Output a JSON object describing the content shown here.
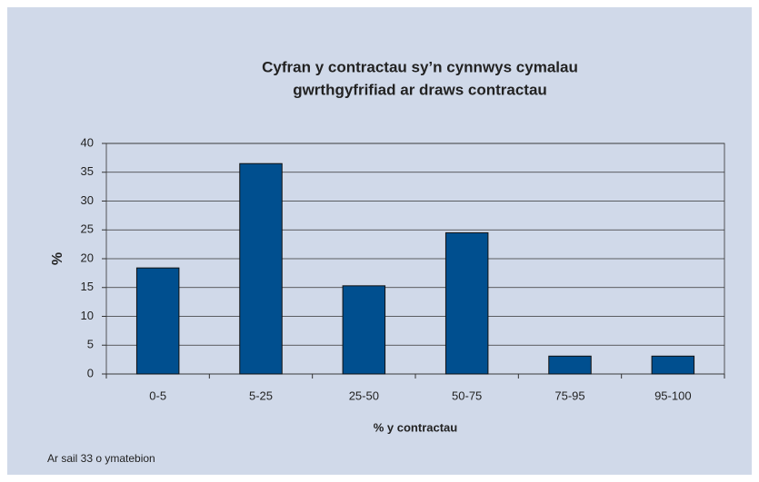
{
  "chart_data": {
    "type": "bar",
    "title": [
      "Cyfran y contractau sy’n cynnwys cymalau",
      "gwrthgyfrifiad ar draws contractau"
    ],
    "xlabel": "% y contractau",
    "ylabel": "%",
    "note": "Ar sail 33 o ymatebion",
    "categories": [
      "0-5",
      "5-25",
      "25-50",
      "50-75",
      "75-95",
      "95-100"
    ],
    "values": [
      18.4,
      36.5,
      15.3,
      24.5,
      3.1,
      3.1
    ],
    "color": "#004f8f",
    "ylim": [
      0,
      40
    ],
    "yticks": [
      0,
      5,
      10,
      15,
      20,
      25,
      30,
      35,
      40
    ],
    "grid": true
  }
}
